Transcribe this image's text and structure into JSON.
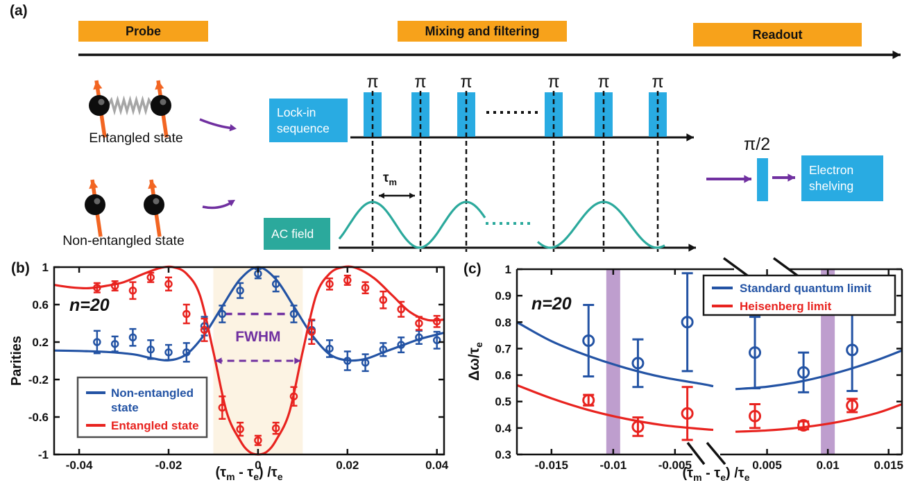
{
  "panel_a": {
    "label": "(a)",
    "stages": [
      "Probe",
      "Mixing and filtering",
      "Readout"
    ],
    "entangled_state_label": "Entangled state",
    "non_entangled_state_label": "Non-entangled state",
    "lockin_box_lines": [
      "Lock-in",
      "sequence"
    ],
    "ac_field_label": "AC field",
    "electron_shelving_lines": [
      "Electron",
      "shelving"
    ],
    "pi_pulse_label": "π",
    "pi_half_label": "π/2",
    "tau_m_label": "τ_m",
    "colors": {
      "stage_box_orange": "#F7A21B",
      "pulse_blue": "#29ABE2",
      "teal": "#2BA99C",
      "purple": "#7030A0",
      "spin_arrow_orange": "#F26522",
      "spring_gray": "#A6A6A6",
      "timeline_black": "#111111"
    }
  },
  "chart_data": [
    {
      "id": "b",
      "type": "line",
      "panel_label": "(b)",
      "annotation": "n=20",
      "xlabel": "(τ_m - τ_e) /τ_e",
      "ylabel": "Parities",
      "xlim": [
        -0.0456,
        0.0416
      ],
      "ylim": [
        -1,
        1
      ],
      "xticks": [
        -0.04,
        -0.02,
        0,
        0.02,
        0.04
      ],
      "yticks": [
        1,
        0.6,
        0.2,
        -0.2,
        -0.6,
        -1
      ],
      "grid": false,
      "legend_position": "bottom-left",
      "shaded_region": {
        "x0": -0.01,
        "x1": 0.01,
        "color": "#FCF3E3"
      },
      "fwhm": {
        "label": "FWHM",
        "color": "#7030A0",
        "half_max_line_y": 0.5,
        "half_max_line_x": [
          -0.0075,
          0.0075
        ],
        "arrow_y": 0,
        "arrow_x": [
          -0.0095,
          0.0095
        ]
      },
      "series": [
        {
          "name": "Non-entangled state",
          "legend_lines": [
            "Non-entangled",
            "state"
          ],
          "color": "#2353A4",
          "x": [
            -0.036,
            -0.032,
            -0.028,
            -0.024,
            -0.02,
            -0.016,
            -0.012,
            -0.008,
            -0.004,
            0,
            0.004,
            0.008,
            0.012,
            0.016,
            0.02,
            0.024,
            0.028,
            0.032,
            0.036,
            0.04
          ],
          "y": [
            0.2,
            0.18,
            0.25,
            0.12,
            0.09,
            0.09,
            0.37,
            0.5,
            0.75,
            0.93,
            0.82,
            0.5,
            0.33,
            0.13,
            0,
            -0.02,
            0.12,
            0.17,
            0.25,
            0.22
          ],
          "yerr": [
            0.12,
            0.08,
            0.09,
            0.1,
            0.08,
            0.1,
            0.1,
            0.09,
            0.08,
            0.05,
            0.08,
            0.09,
            0.1,
            0.09,
            0.1,
            0.09,
            0.07,
            0.08,
            0.07,
            0.09
          ],
          "curve_x": [
            -0.0456,
            -0.04,
            -0.034,
            -0.028,
            -0.024,
            -0.02,
            -0.016,
            -0.012,
            -0.008,
            -0.004,
            0,
            0.004,
            0.008,
            0.012,
            0.016,
            0.02,
            0.024,
            0.028,
            0.032,
            0.036,
            0.04,
            0.0416
          ],
          "curve_y": [
            0.11,
            0.105,
            0.095,
            0.07,
            0.03,
            0.005,
            0.07,
            0.28,
            0.58,
            0.87,
            1,
            0.87,
            0.58,
            0.28,
            0.07,
            0.005,
            0.02,
            0.09,
            0.16,
            0.23,
            0.28,
            0.3
          ]
        },
        {
          "name": "Entangled state",
          "legend_lines": [
            "Entangled state"
          ],
          "color": "#E8231F",
          "x": [
            -0.036,
            -0.032,
            -0.028,
            -0.024,
            -0.02,
            -0.016,
            -0.012,
            -0.008,
            -0.004,
            0,
            0.004,
            0.008,
            0.012,
            0.016,
            0.02,
            0.024,
            0.028,
            0.032,
            0.036,
            0.04
          ],
          "y": [
            0.78,
            0.8,
            0.75,
            0.89,
            0.82,
            0.5,
            0.33,
            -0.5,
            -0.73,
            -0.85,
            -0.72,
            -0.38,
            0.31,
            0.82,
            0.86,
            0.78,
            0.65,
            0.55,
            0.4,
            0.42
          ],
          "yerr": [
            0.05,
            0.05,
            0.09,
            0.05,
            0.07,
            0.1,
            0.12,
            0.12,
            0.07,
            0.05,
            0.06,
            0.1,
            0.13,
            0.06,
            0.05,
            0.06,
            0.09,
            0.08,
            0.07,
            0.06
          ],
          "curve_x": [
            -0.0456,
            -0.042,
            -0.038,
            -0.034,
            -0.03,
            -0.026,
            -0.022,
            -0.019,
            -0.016,
            -0.013,
            -0.01,
            -0.007,
            -0.004,
            -0.002,
            0,
            0.002,
            0.004,
            0.007,
            0.01,
            0.013,
            0.016,
            0.019,
            0.022,
            0.026,
            0.03,
            0.034,
            0.038,
            0.0416
          ],
          "curve_y": [
            0.81,
            0.785,
            0.775,
            0.8,
            0.84,
            0.92,
            0.99,
            1,
            0.93,
            0.7,
            0.1,
            -0.55,
            -0.85,
            -0.97,
            -1,
            -0.97,
            -0.85,
            -0.55,
            0.1,
            0.7,
            0.93,
            1,
            0.99,
            0.88,
            0.7,
            0.52,
            0.435,
            0.44
          ]
        }
      ]
    },
    {
      "id": "c",
      "type": "line",
      "panel_label": "(c)",
      "annotation": "n=20",
      "xlabel": "(τ_m - τ_e) /τ_e",
      "ylabel": "Δω/τ_e",
      "ylim": [
        0.3,
        1
      ],
      "yticks": [
        0.3,
        0.4,
        0.5,
        0.6,
        0.7,
        0.8,
        0.9,
        1
      ],
      "xticks": [
        -0.015,
        -0.01,
        -0.005,
        0.005,
        0.01,
        0.015
      ],
      "xlim_left": [
        -0.0178,
        -0.0019
      ],
      "xlim_right": [
        0.0024,
        0.0161
      ],
      "axis_break_at_zero": true,
      "legend_position": "top-right",
      "highlight_bands": {
        "color": "#B793C9",
        "x_centers": [
          -0.01,
          0.01
        ]
      },
      "series": [
        {
          "name": "Standard quantum limit",
          "legend_lines": [
            "Standard quantum limit"
          ],
          "color": "#2353A4",
          "x": [
            -0.012,
            -0.008,
            -0.004,
            0.004,
            0.008,
            0.012
          ],
          "y": [
            0.73,
            0.645,
            0.8,
            0.685,
            0.61,
            0.695
          ],
          "yerr": [
            0.135,
            0.09,
            0.185,
            0.135,
            0.075,
            0.155
          ],
          "curve_left_x": [
            -0.0178,
            -0.015,
            -0.012,
            -0.009,
            -0.006,
            -0.003,
            -0.0019
          ],
          "curve_left_y": [
            0.8,
            0.728,
            0.672,
            0.627,
            0.592,
            0.568,
            0.558
          ],
          "curve_right_x": [
            0.0024,
            0.005,
            0.008,
            0.011,
            0.014,
            0.0161
          ],
          "curve_right_y": [
            0.547,
            0.556,
            0.578,
            0.612,
            0.656,
            0.693
          ]
        },
        {
          "name": "Heisenberg limit",
          "legend_lines": [
            "Heisenberg limit"
          ],
          "color": "#E8231F",
          "x": [
            -0.012,
            -0.008,
            -0.004,
            0.004,
            0.008,
            0.012
          ],
          "y": [
            0.505,
            0.405,
            0.455,
            0.445,
            0.41,
            0.485
          ],
          "yerr": [
            0.02,
            0.035,
            0.1,
            0.045,
            0.015,
            0.025
          ],
          "curve_left_x": [
            -0.0178,
            -0.015,
            -0.012,
            -0.009,
            -0.006,
            -0.003,
            -0.0019
          ],
          "curve_left_y": [
            0.562,
            0.512,
            0.468,
            0.435,
            0.411,
            0.397,
            0.393
          ],
          "curve_right_x": [
            0.0024,
            0.005,
            0.008,
            0.011,
            0.014,
            0.0161
          ],
          "curve_right_y": [
            0.386,
            0.391,
            0.403,
            0.424,
            0.456,
            0.49
          ]
        }
      ]
    }
  ]
}
